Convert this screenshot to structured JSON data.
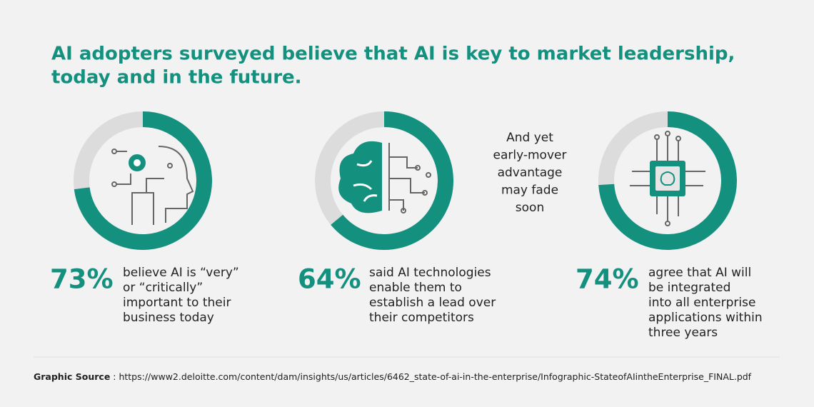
{
  "title": [
    "AI adopters surveyed believe that AI is key to market leadership,",
    "today and in the future."
  ],
  "stats": [
    {
      "value": 73,
      "label": "73%",
      "text": [
        "believe AI is “very”",
        "or “critically”",
        "important to their",
        "business today"
      ]
    },
    {
      "value": 64,
      "label": "64%",
      "text": [
        "said AI technologies",
        "enable them to",
        "establish a lead over",
        "their competitors"
      ]
    },
    {
      "value": 74,
      "label": "74%",
      "text": [
        "agree that AI will",
        "be integrated",
        "into all enterprise",
        "applications within",
        "three years"
      ]
    }
  ],
  "side_note": [
    "And yet",
    "early-mover",
    "advantage",
    "may fade",
    "soon"
  ],
  "source_label": "Graphic Source",
  "source_text": " : https://www2.deloitte.com/content/dam/insights/us/articles/6462_state-of-ai-in-the-enterprise/Infographic-StateofAIintheEnterprise_FINAL.pdf",
  "colors": {
    "accent": "#14907f",
    "track": "#dcdcdc"
  }
}
